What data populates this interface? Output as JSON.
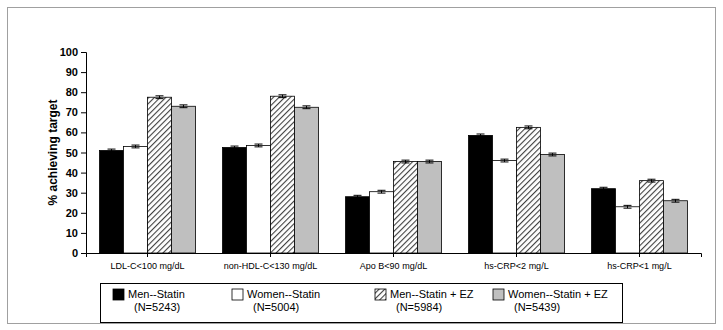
{
  "chart_data": {
    "type": "bar",
    "y_label": "% achieving target",
    "categories": [
      "LDL-C<100 mg/dL",
      "non-HDL-C<130 mg/dL",
      "Apo B<90 mg/dL",
      "hs-CRP<2 mg/L",
      "hs-CRP<1 mg/L"
    ],
    "series": [
      {
        "name": "Men--Statin\n(N=5243)",
        "color": "#000000",
        "marker": "solid",
        "values": [
          51,
          52.5,
          28,
          58.5,
          32
        ],
        "errors": [
          0.7,
          0.7,
          0.7,
          0.7,
          0.7
        ]
      },
      {
        "name": "Women--Statin\n(N=5004)",
        "color": "#ffffff",
        "marker": "solid",
        "values": [
          53,
          53.5,
          30.5,
          46,
          23
        ],
        "errors": [
          0.7,
          0.7,
          0.7,
          0.7,
          0.7
        ]
      },
      {
        "name": "Men--Statin + EZ\n(N=5984)",
        "color": "#404040",
        "marker": "hatch",
        "values": [
          77.5,
          78,
          45.5,
          62.5,
          36
        ],
        "errors": [
          0.7,
          0.7,
          0.7,
          0.7,
          0.7
        ]
      },
      {
        "name": "Women--Statin + EZ\n(N=5439)",
        "color": "#bfbfbf",
        "marker": "solid",
        "values": [
          73,
          72.5,
          45.5,
          49,
          26
        ],
        "errors": [
          0.7,
          0.7,
          0.7,
          0.7,
          0.7
        ]
      }
    ],
    "ylim": [
      0,
      100
    ],
    "yticks": [
      0,
      10,
      20,
      30,
      40,
      50,
      60,
      70,
      80,
      90,
      100
    ],
    "grid": false,
    "legend": "bottom"
  }
}
